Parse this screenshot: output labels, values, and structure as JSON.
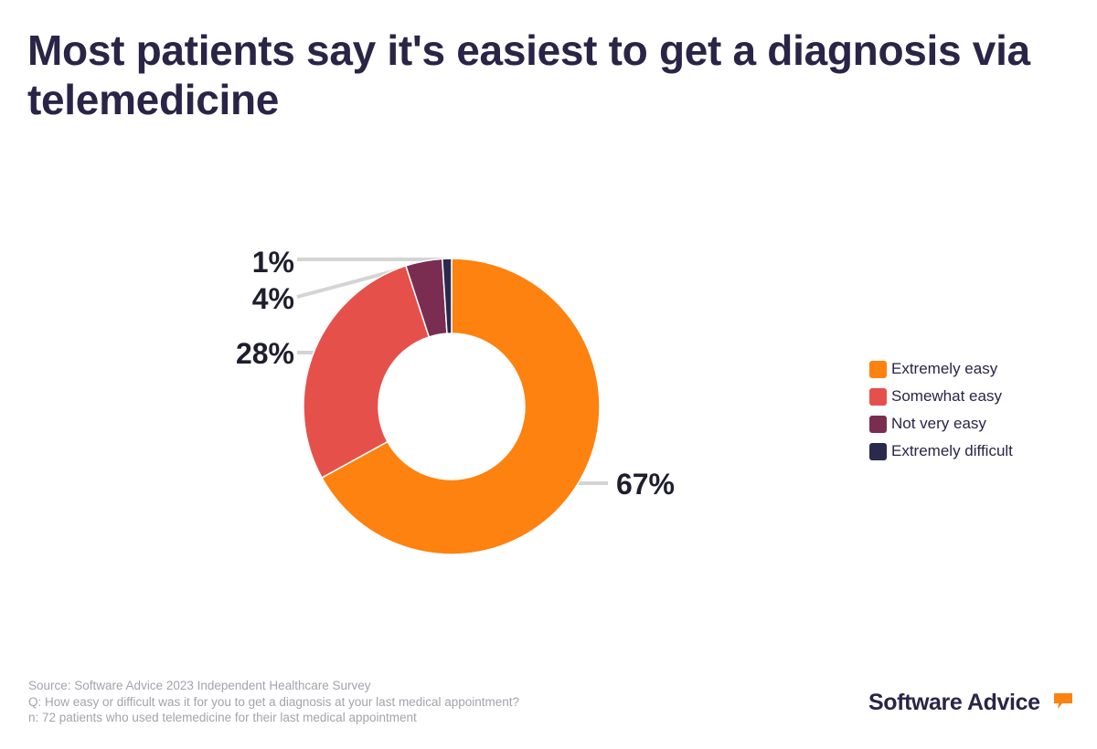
{
  "title": "Most patients say it's easiest to get a diagnosis via telemedicine",
  "chart_data": {
    "type": "pie",
    "donut": true,
    "title": "Most patients say it's easiest to get a diagnosis via telemedicine",
    "categories": [
      "Extremely easy",
      "Somewhat easy",
      "Not very easy",
      "Extremely difficult"
    ],
    "values": [
      67,
      28,
      4,
      1
    ],
    "labels": [
      "67%",
      "28%",
      "4%",
      "1%"
    ],
    "colors": [
      "#fd820f",
      "#e5514a",
      "#7a2d51",
      "#2a2a4e"
    ],
    "legend_position": "right"
  },
  "footnote": {
    "source": "Source: Software Advice 2023 Independent Healthcare Survey",
    "question": "Q: How easy or difficult was it for you to get a diagnosis at your last medical appointment?",
    "sample": "n: 72 patients who used telemedicine for their last medical appointment"
  },
  "brand": {
    "name": "Software Advice",
    "accent": "#fd820f"
  }
}
